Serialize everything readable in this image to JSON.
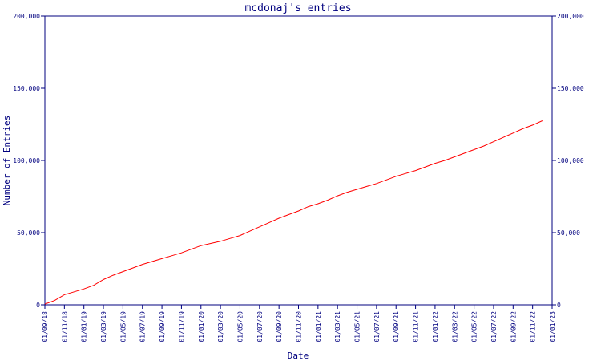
{
  "chart_data": {
    "type": "line",
    "title": "mcdonaj's entries",
    "xlabel": "Date",
    "ylabel": "Number of Entries",
    "xlim": [
      "01/09/18",
      "01/01/23"
    ],
    "ylim": [
      0,
      200000
    ],
    "y_ticks": [
      0,
      50000,
      100000,
      150000,
      200000
    ],
    "y_tick_labels": [
      "0",
      "50,000",
      "100,000",
      "150,000",
      "200,000"
    ],
    "x_ticks": [
      "01/09/18",
      "01/11/18",
      "01/01/19",
      "01/03/19",
      "01/05/19",
      "01/07/19",
      "01/09/19",
      "01/11/19",
      "01/01/20",
      "01/03/20",
      "01/05/20",
      "01/07/20",
      "01/09/20",
      "01/11/20",
      "01/01/21",
      "01/03/21",
      "01/05/21",
      "01/07/21",
      "01/09/21",
      "01/11/21",
      "01/01/22",
      "01/03/22",
      "01/05/22",
      "01/07/22",
      "01/09/22",
      "01/11/22",
      "01/01/23"
    ],
    "grid": false,
    "colors": {
      "line": "#ff0000",
      "axes": "#00007f",
      "text": "#00007f"
    },
    "series": [
      {
        "x": [
          "01/09/18",
          "01/10/18",
          "01/11/18",
          "01/12/18",
          "01/01/19",
          "01/02/19",
          "01/03/19",
          "01/04/19",
          "01/05/19",
          "01/06/19",
          "01/07/19",
          "01/08/19",
          "01/09/19",
          "01/10/19",
          "01/11/19",
          "01/12/19",
          "01/01/20",
          "01/02/20",
          "01/03/20",
          "01/04/20",
          "01/05/20",
          "01/06/20",
          "01/07/20",
          "01/08/20",
          "01/09/20",
          "01/10/20",
          "01/11/20",
          "01/12/20",
          "01/01/21",
          "01/02/21",
          "01/03/21",
          "01/04/21",
          "01/05/21",
          "01/06/21",
          "01/07/21",
          "01/08/21",
          "01/09/21",
          "01/10/21",
          "01/11/21",
          "01/12/21",
          "01/01/22",
          "01/02/22",
          "01/03/22",
          "01/04/22",
          "01/05/22",
          "01/06/22",
          "01/07/22",
          "01/08/22",
          "01/09/22",
          "01/10/22",
          "01/11/22",
          "01/12/22"
        ],
        "y": [
          500,
          3000,
          7000,
          9000,
          11000,
          13500,
          17500,
          20500,
          23000,
          25500,
          28000,
          30000,
          32000,
          34000,
          36000,
          38500,
          41000,
          42500,
          44000,
          46000,
          48000,
          51000,
          54000,
          57000,
          60000,
          62500,
          65000,
          68000,
          70000,
          72500,
          75500,
          78000,
          80000,
          82000,
          84000,
          86500,
          89000,
          91000,
          93000,
          95500,
          98000,
          100000,
          102500,
          105000,
          107500,
          110000,
          113000,
          116000,
          119000,
          122000,
          124500,
          127500
        ]
      }
    ]
  }
}
